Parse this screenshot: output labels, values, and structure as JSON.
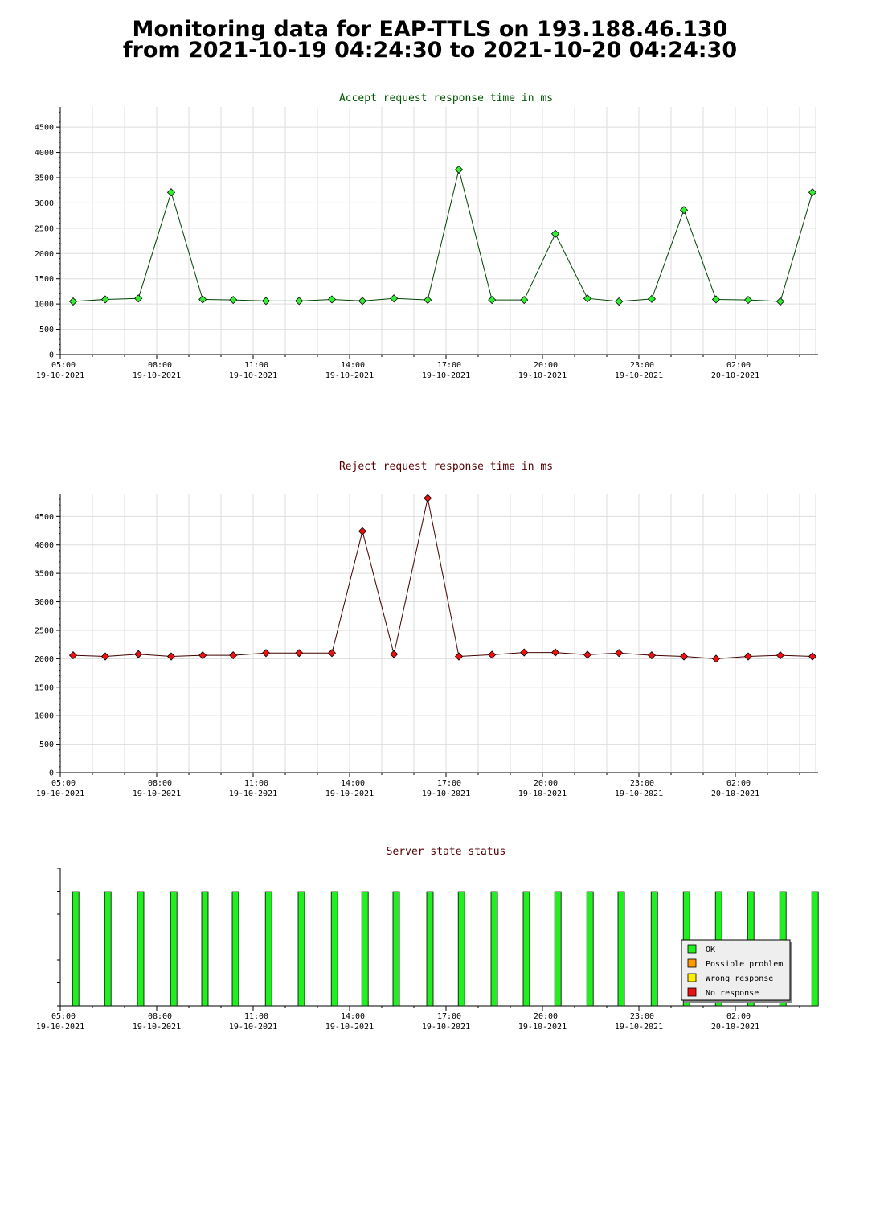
{
  "page": {
    "title_line1": "Monitoring data for EAP-TTLS on 193.188.46.130",
    "title_line2": "from 2021-10-19 04:24:30 to 2021-10-20 04:24:30"
  },
  "chart_data": [
    {
      "type": "line",
      "title": "Accept request response time in ms",
      "title_color": "#005500",
      "line_color": "#004400",
      "marker_color": "#33ee33",
      "ylim": [
        0,
        4900
      ],
      "yticks": [
        0,
        500,
        1000,
        1500,
        2000,
        2500,
        3000,
        3500,
        4000,
        4500
      ],
      "xlim": [
        0,
        23.5
      ],
      "grid": true,
      "x_ticks": [
        {
          "x": 0,
          "time": "05:00",
          "date": "19-10-2021"
        },
        {
          "x": 3,
          "time": "08:00",
          "date": "19-10-2021"
        },
        {
          "x": 6,
          "time": "11:00",
          "date": "19-10-2021"
        },
        {
          "x": 9,
          "time": "14:00",
          "date": "19-10-2021"
        },
        {
          "x": 12,
          "time": "17:00",
          "date": "19-10-2021"
        },
        {
          "x": 15,
          "time": "20:00",
          "date": "19-10-2021"
        },
        {
          "x": 18,
          "time": "23:00",
          "date": "19-10-2021"
        },
        {
          "x": 21,
          "time": "02:00",
          "date": "20-10-2021"
        }
      ],
      "points": [
        [
          0.4,
          1050
        ],
        [
          1.4,
          1090
        ],
        [
          2.43,
          1110
        ],
        [
          3.45,
          3210
        ],
        [
          4.43,
          1090
        ],
        [
          5.38,
          1080
        ],
        [
          6.4,
          1060
        ],
        [
          7.43,
          1060
        ],
        [
          8.45,
          1090
        ],
        [
          9.4,
          1060
        ],
        [
          10.38,
          1110
        ],
        [
          11.43,
          1080
        ],
        [
          12.4,
          3660
        ],
        [
          13.43,
          1080
        ],
        [
          14.43,
          1080
        ],
        [
          15.4,
          2390
        ],
        [
          16.4,
          1110
        ],
        [
          17.38,
          1050
        ],
        [
          18.4,
          1100
        ],
        [
          19.4,
          2860
        ],
        [
          20.4,
          1090
        ],
        [
          21.4,
          1080
        ],
        [
          22.4,
          1050
        ],
        [
          23.4,
          3210
        ]
      ]
    },
    {
      "type": "line",
      "title": "Reject request response time in ms",
      "title_color": "#550000",
      "line_color": "#440000",
      "marker_color": "#ee1111",
      "ylim": [
        0,
        4900
      ],
      "yticks": [
        0,
        500,
        1000,
        1500,
        2000,
        2500,
        3000,
        3500,
        4000,
        4500
      ],
      "xlim": [
        0,
        23.5
      ],
      "grid": true,
      "x_ticks": [
        {
          "x": 0,
          "time": "05:00",
          "date": "19-10-2021"
        },
        {
          "x": 3,
          "time": "08:00",
          "date": "19-10-2021"
        },
        {
          "x": 6,
          "time": "11:00",
          "date": "19-10-2021"
        },
        {
          "x": 9,
          "time": "14:00",
          "date": "19-10-2021"
        },
        {
          "x": 12,
          "time": "17:00",
          "date": "19-10-2021"
        },
        {
          "x": 15,
          "time": "20:00",
          "date": "19-10-2021"
        },
        {
          "x": 18,
          "time": "23:00",
          "date": "19-10-2021"
        },
        {
          "x": 21,
          "time": "02:00",
          "date": "20-10-2021"
        }
      ],
      "points": [
        [
          0.4,
          2060
        ],
        [
          1.4,
          2040
        ],
        [
          2.43,
          2080
        ],
        [
          3.45,
          2040
        ],
        [
          4.43,
          2060
        ],
        [
          5.38,
          2060
        ],
        [
          6.4,
          2100
        ],
        [
          7.43,
          2100
        ],
        [
          8.45,
          2100
        ],
        [
          9.4,
          4240
        ],
        [
          10.38,
          2080
        ],
        [
          11.43,
          4820
        ],
        [
          12.4,
          2040
        ],
        [
          13.43,
          2070
        ],
        [
          14.43,
          2110
        ],
        [
          15.4,
          2110
        ],
        [
          16.4,
          2070
        ],
        [
          17.38,
          2100
        ],
        [
          18.4,
          2060
        ],
        [
          19.4,
          2040
        ],
        [
          20.4,
          2000
        ],
        [
          21.4,
          2040
        ],
        [
          22.4,
          2060
        ],
        [
          23.4,
          2040
        ]
      ]
    },
    {
      "type": "bar",
      "title": "Server state status",
      "title_color": "#550000",
      "xlim": [
        0,
        23.5
      ],
      "bar_level": 0.83,
      "x_ticks": [
        {
          "x": 0,
          "time": "05:00",
          "date": "19-10-2021"
        },
        {
          "x": 3,
          "time": "08:00",
          "date": "19-10-2021"
        },
        {
          "x": 6,
          "time": "11:00",
          "date": "19-10-2021"
        },
        {
          "x": 9,
          "time": "14:00",
          "date": "19-10-2021"
        },
        {
          "x": 12,
          "time": "17:00",
          "date": "19-10-2021"
        },
        {
          "x": 15,
          "time": "20:00",
          "date": "19-10-2021"
        },
        {
          "x": 18,
          "time": "23:00",
          "date": "19-10-2021"
        },
        {
          "x": 21,
          "time": "02:00",
          "date": "20-10-2021"
        }
      ],
      "bars": [
        {
          "x": 0.48,
          "status": "OK"
        },
        {
          "x": 1.48,
          "status": "OK"
        },
        {
          "x": 2.5,
          "status": "OK"
        },
        {
          "x": 3.53,
          "status": "OK"
        },
        {
          "x": 4.5,
          "status": "OK"
        },
        {
          "x": 5.45,
          "status": "OK"
        },
        {
          "x": 6.48,
          "status": "OK"
        },
        {
          "x": 7.5,
          "status": "OK"
        },
        {
          "x": 8.53,
          "status": "OK"
        },
        {
          "x": 9.48,
          "status": "OK"
        },
        {
          "x": 10.45,
          "status": "OK"
        },
        {
          "x": 11.5,
          "status": "OK"
        },
        {
          "x": 12.48,
          "status": "OK"
        },
        {
          "x": 13.5,
          "status": "OK"
        },
        {
          "x": 14.5,
          "status": "OK"
        },
        {
          "x": 15.48,
          "status": "OK"
        },
        {
          "x": 16.48,
          "status": "OK"
        },
        {
          "x": 17.45,
          "status": "OK"
        },
        {
          "x": 18.48,
          "status": "OK"
        },
        {
          "x": 19.48,
          "status": "OK"
        },
        {
          "x": 20.48,
          "status": "OK"
        },
        {
          "x": 21.48,
          "status": "OK"
        },
        {
          "x": 22.48,
          "status": "OK"
        },
        {
          "x": 23.48,
          "status": "OK"
        }
      ],
      "legend": {
        "placement": "bottom-right",
        "items": [
          {
            "label": "OK",
            "color": "#22ee22"
          },
          {
            "label": "Possible problem",
            "color": "#ff9900"
          },
          {
            "label": "Wrong response",
            "color": "#ffee00"
          },
          {
            "label": "No response",
            "color": "#ee1111"
          }
        ]
      }
    }
  ]
}
